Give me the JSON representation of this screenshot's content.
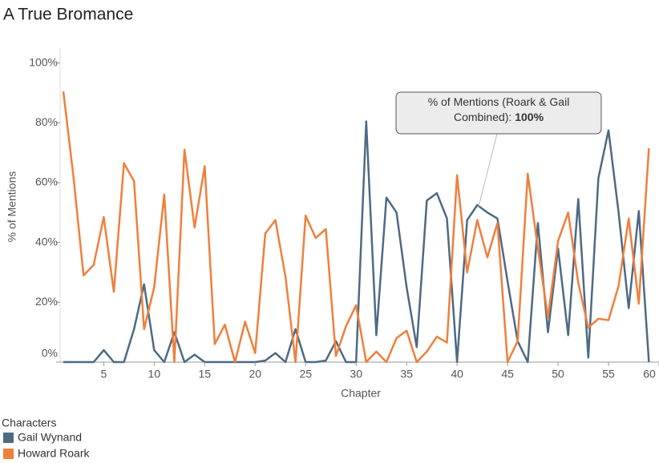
{
  "chart_data": {
    "type": "line",
    "title": "A True Bromance",
    "x_label": "Chapter",
    "y_label": "% of Mentions",
    "x": [
      1,
      2,
      3,
      4,
      5,
      6,
      7,
      8,
      9,
      10,
      11,
      12,
      13,
      14,
      15,
      16,
      17,
      18,
      19,
      20,
      21,
      22,
      23,
      24,
      25,
      26,
      27,
      28,
      29,
      30,
      31,
      32,
      33,
      34,
      35,
      36,
      37,
      38,
      39,
      40,
      41,
      42,
      43,
      44,
      45,
      46,
      47,
      48,
      49,
      50,
      51,
      52,
      53,
      54,
      55,
      56,
      57,
      58,
      59
    ],
    "series": [
      {
        "name": "Gail Wynand",
        "color": "#4e6a83",
        "values": [
          0,
          0,
          0,
          0,
          4,
          0,
          0,
          11,
          26,
          4,
          0,
          10,
          0,
          2.5,
          0,
          0,
          0,
          0,
          0,
          0,
          0.5,
          3,
          0,
          11,
          0,
          0,
          0.5,
          7,
          0,
          0,
          80.5,
          9,
          55,
          50,
          25,
          5,
          54,
          56.5,
          48,
          0,
          47.5,
          52.5,
          50,
          48,
          27,
          7,
          0,
          46.5,
          10,
          38,
          9,
          54.5,
          1.5,
          61.5,
          77.5,
          50,
          18,
          50.5,
          0
        ]
      },
      {
        "name": "Howard Roark",
        "color": "#f07f3c",
        "values": [
          90.5,
          62,
          29,
          32.5,
          48.5,
          23.5,
          66.5,
          60.5,
          11,
          25,
          56,
          0,
          71,
          45,
          65.5,
          6,
          12.5,
          0,
          13.5,
          3,
          43,
          47.5,
          28.5,
          0,
          49,
          41.5,
          44.5,
          2,
          12,
          19,
          0,
          3.5,
          0,
          8,
          10.5,
          0,
          3.5,
          8.5,
          6.5,
          62.5,
          30,
          47.5,
          35,
          46.5,
          0,
          7,
          63,
          38,
          15,
          40.5,
          50,
          26.5,
          11.5,
          14.5,
          14,
          25.5,
          48,
          19.5,
          71.5
        ]
      }
    ],
    "xlim": [
      1,
      60
    ],
    "xticks": [
      5,
      10,
      15,
      20,
      25,
      30,
      35,
      40,
      45,
      50,
      55,
      60
    ],
    "ylim": [
      0,
      105
    ],
    "yticks": [
      {
        "value": 0,
        "label": "0%"
      },
      {
        "value": 20,
        "label": "20%"
      },
      {
        "value": 40,
        "label": "40%"
      },
      {
        "value": 60,
        "label": "60%"
      },
      {
        "value": 80,
        "label": "80%"
      },
      {
        "value": 100,
        "label": "100%"
      }
    ],
    "grid": false,
    "legend_title": "Characters",
    "legend_position": "bottom-left",
    "annotation": {
      "text": "% of Mentions (Roark & Gail Combined):",
      "value": 100,
      "value_label": "100%"
    }
  }
}
